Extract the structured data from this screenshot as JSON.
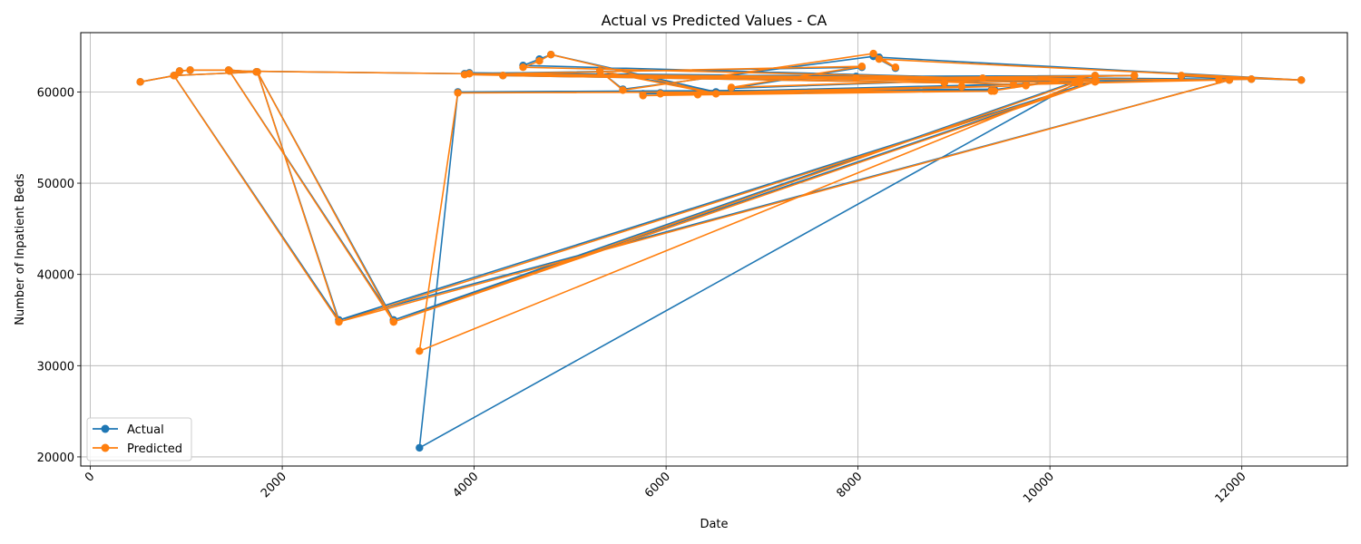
{
  "chart_data": {
    "type": "line",
    "title": "Actual vs Predicted Values - CA",
    "xlabel": "Date",
    "ylabel": "Number of Inpatient Beds",
    "xlim": [
      -100,
      13100
    ],
    "ylim": [
      19000,
      66500
    ],
    "xticks": [
      0,
      2000,
      4000,
      6000,
      8000,
      10000,
      12000
    ],
    "xtick_labels": [
      "0",
      "2000",
      "4000",
      "6000",
      "8000",
      "10000",
      "12000"
    ],
    "yticks": [
      20000,
      30000,
      40000,
      50000,
      60000
    ],
    "ytick_labels": [
      "20000",
      "30000",
      "40000",
      "50000",
      "60000"
    ],
    "grid": true,
    "legend": "lower-left",
    "series": [
      {
        "name": "Actual",
        "color": "#1f77b4",
        "x": [
          520,
          880,
          930,
          1040,
          1440,
          1730,
          870,
          2590,
          1740,
          3160,
          1450,
          10480,
          4510,
          4680,
          4800,
          6520,
          5310,
          5550,
          8160,
          8390,
          8220,
          12620,
          11370,
          12100,
          10310,
          3430,
          3830,
          9420,
          5760,
          9080,
          5940,
          9750,
          6330,
          9390,
          10470,
          6680,
          8040,
          3900,
          8900,
          4300,
          11870,
          2590,
          10470,
          3160,
          10260,
          3950,
          11760,
          9620,
          7980,
          10880,
          9300
        ],
        "y": [
          61100,
          61800,
          62300,
          62400,
          62400,
          62200,
          61800,
          35000,
          62200,
          35000,
          62300,
          61200,
          62900,
          63600,
          64100,
          60000,
          62300,
          60300,
          63900,
          62600,
          63800,
          61300,
          61700,
          61400,
          61200,
          21000,
          60000,
          60300,
          59800,
          60600,
          59900,
          60900,
          59800,
          60200,
          61800,
          60400,
          62700,
          62000,
          61000,
          61800,
          61300,
          35000,
          61200,
          35000,
          61100,
          62100,
          61400,
          60800,
          61700,
          61800,
          61500
        ]
      },
      {
        "name": "Predicted",
        "color": "#ff7f0e",
        "x": [
          520,
          880,
          930,
          1040,
          1440,
          1730,
          870,
          2590,
          1740,
          3160,
          1450,
          10480,
          4510,
          4680,
          4800,
          6520,
          5310,
          5550,
          8160,
          8390,
          8220,
          12620,
          11370,
          12100,
          10310,
          3430,
          3830,
          9420,
          5760,
          9080,
          5940,
          9750,
          6330,
          9390,
          10470,
          6680,
          8040,
          3900,
          8900,
          4300,
          11870,
          2590,
          10470,
          3160,
          10260,
          3950,
          11760,
          9620,
          7980,
          10880,
          9300
        ],
        "y": [
          61100,
          61800,
          62300,
          62400,
          62400,
          62200,
          61800,
          34800,
          62200,
          34800,
          62300,
          61200,
          62700,
          63400,
          64100,
          59800,
          62300,
          60200,
          64200,
          62700,
          63600,
          61300,
          61800,
          61400,
          61000,
          31600,
          59900,
          60100,
          59600,
          60600,
          59800,
          60700,
          59700,
          60100,
          61800,
          60500,
          62800,
          61900,
          61000,
          61800,
          61300,
          34800,
          61100,
          34800,
          61000,
          62000,
          61300,
          60800,
          61500,
          61800,
          61500
        ]
      }
    ]
  }
}
